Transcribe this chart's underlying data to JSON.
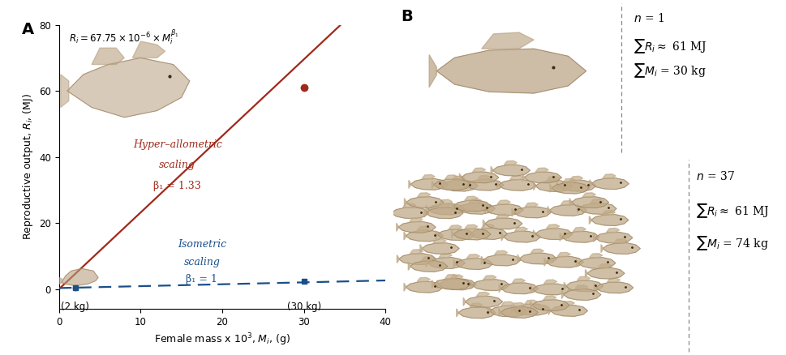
{
  "panel_A_label": "A",
  "panel_B_label": "B",
  "formula_text": "$R_i = 67.75 \\times 10^{-6} \\times M_i^{\\beta_1}$",
  "xlabel": "Female mass x 10$^3$, $M_i$, (g)",
  "ylabel": "Reproductive output, $R_i$, (MJ)",
  "xlim": [
    0,
    40
  ],
  "ylim": [
    -6,
    80
  ],
  "xticks": [
    0,
    10,
    20,
    30,
    40
  ],
  "yticks": [
    0,
    20,
    40,
    60,
    80
  ],
  "hyper_color": "#A0291A",
  "iso_color": "#1A4F8A",
  "hyper_label_line1": "Hyper–allometric",
  "hyper_label_line2": "scaling",
  "hyper_beta": "β₁ = 1.33",
  "iso_label_line1": "Isometric",
  "iso_label_line2": "scaling",
  "iso_beta": "β₁ = 1",
  "point_2kg_x": 2,
  "point_2kg_y": 0.5,
  "point_30kg_x": 30,
  "point_30kg_y_hyper": 61,
  "point_30kg_y_iso": 2.3,
  "annotation_2kg": "(2 kg)",
  "annotation_30kg": "(30 kg)",
  "hyper_x0": 0,
  "hyper_y0": 0,
  "hyper_x1": 34.5,
  "hyper_y1": 80,
  "iso_x0": 0,
  "iso_y0": 0.3,
  "iso_x1": 40,
  "iso_y1": 2.6,
  "panel_B_n1_text": "$n$ = 1",
  "panel_B_sum_R1": "$\\sum R_i \\approx$ 61 MJ",
  "panel_B_sum_M1": "$\\sum M_i$ = 30 kg",
  "panel_B_n2_text": "$n$ = 37",
  "panel_B_sum_R2": "$\\sum R_i \\approx$ 61 MJ",
  "panel_B_sum_M2": "$\\sum M_i$ = 74 kg",
  "background_color": "#FFFFFF",
  "text_color": "#000000",
  "fish_color_large": "#B8A080",
  "fish_color_small": "#B8A080",
  "fish_school_color": "#C0AA88"
}
